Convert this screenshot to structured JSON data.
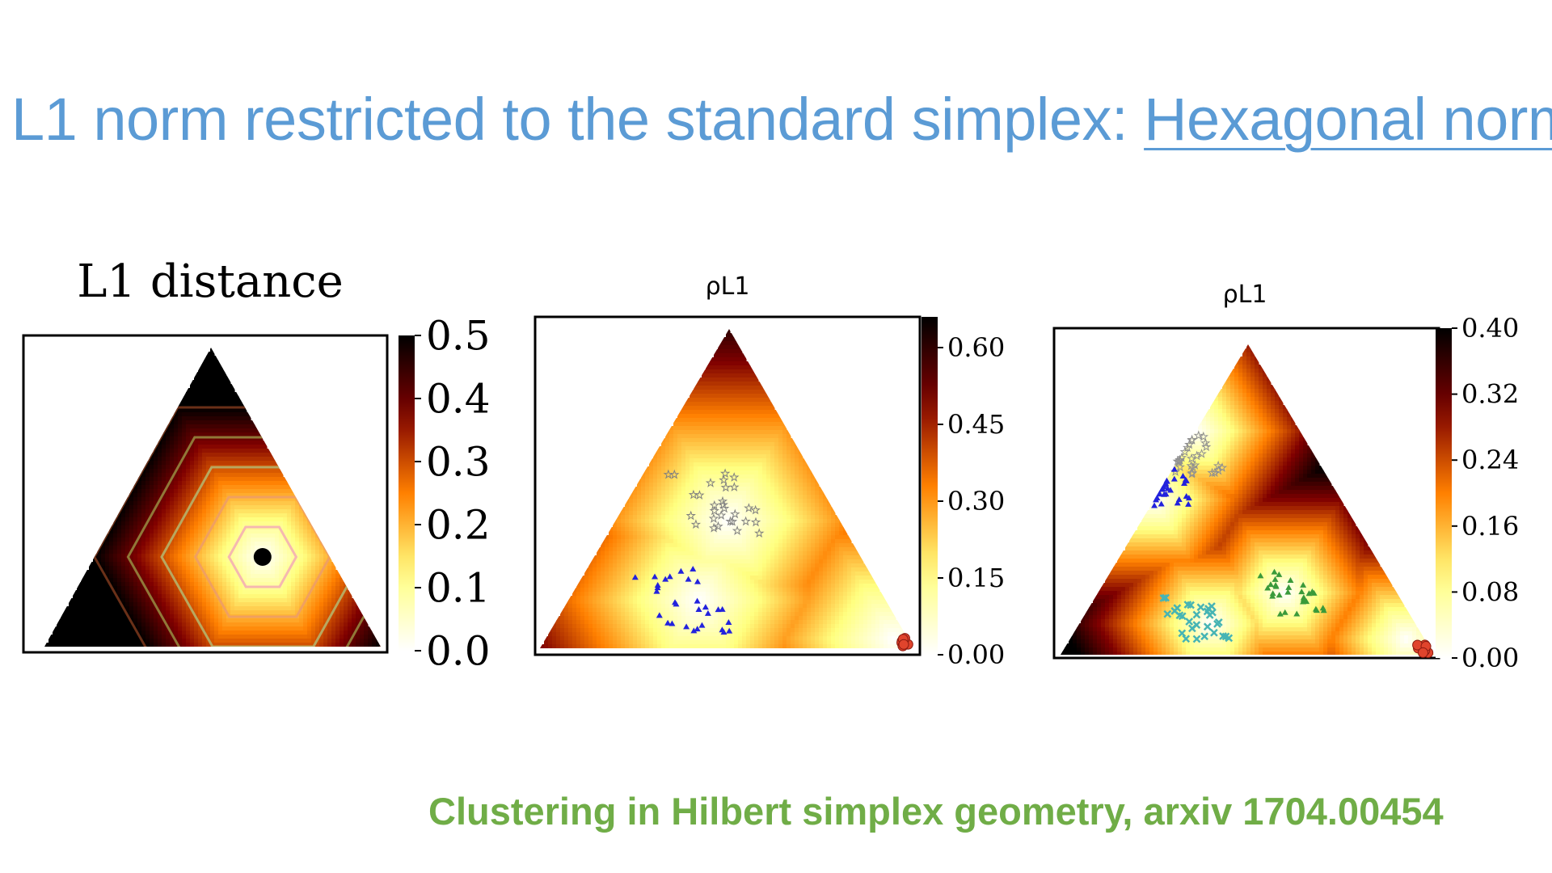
{
  "slide": {
    "title_main": "L1 norm restricted to the standard simplex: ",
    "title_link": "Hexagonal norm",
    "citation": "Clustering in Hilbert simplex geometry, arxiv 1704.00454"
  },
  "colors": {
    "title": "#5b9bd5",
    "citation": "#70ad47",
    "colormap": "afmhot_r"
  },
  "chart_data": [
    {
      "type": "heatmap",
      "title": "L1 distance",
      "domain": "standard simplex (ternary)",
      "center_marker": [
        0.2,
        0.3,
        0.5
      ],
      "contour_levels": [
        0.1,
        0.2,
        0.3,
        0.4,
        0.5
      ],
      "colorbar": {
        "ticks": [
          "0.5",
          "0.4",
          "0.3",
          "0.2",
          "0.1",
          "0.0"
        ],
        "range": [
          0.0,
          0.5
        ]
      }
    },
    {
      "type": "heatmap",
      "title": "ρL1",
      "domain": "standard simplex (ternary)",
      "colorbar": {
        "ticks": [
          "0.60",
          "0.45",
          "0.30",
          "0.15",
          "0.00"
        ],
        "range": [
          0.0,
          0.66
        ]
      },
      "cluster_centers": [
        [
          0.04,
          0.03,
          0.93
        ],
        [
          0.3,
          0.4,
          0.3
        ],
        [
          0.5,
          0.15,
          0.35
        ]
      ],
      "series": [
        {
          "marker": "circle",
          "color": "#e0442c",
          "center": [
            0.02,
            0.02,
            0.96
          ]
        },
        {
          "marker": "star",
          "color": "#808080",
          "center": [
            0.3,
            0.45,
            0.25
          ]
        },
        {
          "marker": "tri",
          "color": "#2222dd",
          "center": [
            0.55,
            0.15,
            0.3
          ]
        }
      ]
    },
    {
      "type": "heatmap",
      "title": "ρL1",
      "domain": "standard simplex (ternary)",
      "colorbar": {
        "ticks": [
          "0.40",
          "0.32",
          "0.24",
          "0.16",
          "0.08",
          "0.00"
        ],
        "range": [
          0.0,
          0.4
        ]
      },
      "cluster_centers": [
        [
          0.05,
          0.05,
          0.9
        ],
        [
          0.3,
          0.2,
          0.5
        ],
        [
          0.55,
          0.1,
          0.35
        ],
        [
          0.28,
          0.72,
          0.0
        ],
        [
          0.5,
          0.5,
          0.0
        ]
      ],
      "series": [
        {
          "marker": "circle",
          "color": "#e0442c",
          "center": [
            0.02,
            0.02,
            0.96
          ]
        },
        {
          "marker": "tri",
          "color": "#3a9a3a",
          "center": [
            0.28,
            0.2,
            0.52
          ]
        },
        {
          "marker": "x",
          "color": "#46b4b4",
          "center": [
            0.58,
            0.12,
            0.3
          ]
        },
        {
          "marker": "star",
          "color": "#909090",
          "center": [
            0.33,
            0.65,
            0.02
          ]
        },
        {
          "marker": "tri",
          "color": "#2222dd",
          "center": [
            0.45,
            0.55,
            0.0
          ]
        }
      ]
    }
  ]
}
